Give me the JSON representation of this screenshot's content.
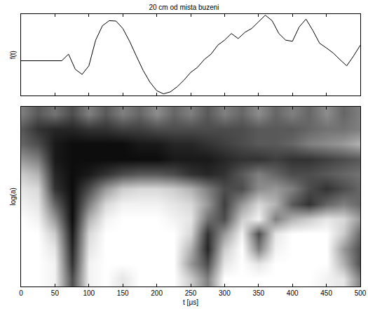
{
  "chart_data": [
    {
      "type": "line",
      "title": "20 cm od mista buzeni",
      "y_label": "f(t)",
      "x": [
        0,
        10,
        20,
        30,
        40,
        50,
        60,
        70,
        80,
        90,
        100,
        110,
        120,
        130,
        140,
        150,
        160,
        170,
        180,
        190,
        200,
        210,
        220,
        230,
        240,
        250,
        260,
        270,
        280,
        290,
        300,
        310,
        320,
        330,
        340,
        350,
        360,
        370,
        380,
        390,
        400,
        410,
        420,
        430,
        440,
        450,
        460,
        470,
        480,
        490,
        500
      ],
      "values": [
        0,
        0,
        0,
        0,
        0,
        0,
        0,
        0.17,
        -0.22,
        -0.35,
        -0.13,
        0.53,
        0.9,
        1.03,
        1.02,
        0.83,
        0.5,
        0.12,
        -0.25,
        -0.55,
        -0.77,
        -0.85,
        -0.8,
        -0.67,
        -0.5,
        -0.3,
        -0.17,
        0.03,
        0.17,
        0.4,
        0.53,
        0.7,
        0.57,
        0.73,
        0.83,
        1.0,
        1.17,
        1.03,
        0.7,
        0.53,
        0.5,
        0.87,
        1.07,
        0.78,
        0.45,
        0.33,
        0.2,
        0.03,
        -0.13,
        0.12,
        0.4
      ],
      "color": "#000000",
      "xlim": [
        0,
        500
      ],
      "xticks": [
        0,
        50,
        100,
        150,
        200,
        250,
        300,
        350,
        400,
        450,
        500
      ],
      "ylim": [
        -0.9,
        1.2
      ],
      "tick_labels": false
    },
    {
      "type": "heatmap",
      "x_label": "t [μs]",
      "y_label": "log(a)",
      "x": [
        0,
        25,
        50,
        75,
        100,
        125,
        150,
        175,
        200,
        225,
        250,
        275,
        300,
        325,
        350,
        375,
        400,
        425,
        450,
        475,
        500
      ],
      "y": [
        0,
        1,
        2,
        3,
        4,
        5,
        6,
        7,
        8,
        9,
        10,
        11
      ],
      "z": [
        [
          1,
          1,
          0.95,
          0.3,
          0.95,
          1,
          0.9,
          1,
          1,
          1,
          0.8,
          0.5,
          1,
          1,
          1,
          1,
          1,
          1,
          0.95,
          0.9,
          0.5
        ],
        [
          1,
          1,
          0.95,
          0.2,
          0.95,
          1,
          1,
          1,
          1,
          1,
          0.6,
          0.3,
          0.9,
          1,
          0.9,
          1,
          1,
          1,
          1,
          0.7,
          0.3
        ],
        [
          1,
          1,
          0.9,
          0.15,
          0.9,
          1,
          1,
          1,
          1,
          1,
          0.7,
          0.15,
          0.8,
          1,
          0.5,
          0.95,
          1,
          1,
          1,
          0.6,
          0.3
        ],
        [
          1,
          1,
          0.8,
          0.1,
          0.85,
          1,
          1,
          1,
          1,
          1,
          0.85,
          0.2,
          0.6,
          0.95,
          0.3,
          0.9,
          1,
          1,
          1,
          0.8,
          0.4
        ],
        [
          1,
          0.95,
          0.6,
          0.05,
          0.7,
          0.95,
          1,
          1,
          1,
          0.95,
          0.9,
          0.45,
          0.3,
          0.8,
          0.95,
          0.5,
          0.7,
          0.8,
          0.9,
          0.85,
          0.6
        ],
        [
          0.95,
          0.9,
          0.4,
          0.05,
          0.5,
          0.85,
          0.95,
          0.95,
          0.95,
          0.9,
          0.85,
          0.6,
          0.25,
          0.6,
          0.85,
          0.7,
          0.35,
          0.2,
          0.4,
          0.5,
          0.4
        ],
        [
          0.9,
          0.85,
          0.2,
          0.05,
          0.3,
          0.6,
          0.8,
          0.85,
          0.85,
          0.8,
          0.7,
          0.5,
          0.3,
          0.3,
          0.55,
          0.6,
          0.5,
          0.3,
          0.2,
          0.3,
          0.4
        ],
        [
          0.8,
          0.7,
          0.15,
          0.05,
          0.1,
          0.2,
          0.3,
          0.35,
          0.35,
          0.3,
          0.2,
          0.15,
          0.2,
          0.35,
          0.5,
          0.4,
          0.3,
          0.3,
          0.35,
          0.4,
          0.45
        ],
        [
          0.6,
          0.5,
          0.1,
          0.05,
          0.05,
          0.05,
          0.05,
          0.05,
          0.05,
          0.1,
          0.1,
          0.1,
          0.15,
          0.2,
          0.2,
          0.25,
          0.2,
          0.2,
          0.25,
          0.3,
          0.35
        ],
        [
          0.4,
          0.3,
          0.1,
          0.05,
          0.05,
          0.05,
          0.05,
          0.1,
          0.1,
          0.15,
          0.15,
          0.2,
          0.25,
          0.3,
          0.35,
          0.35,
          0.4,
          0.5,
          0.55,
          0.6,
          0.7
        ],
        [
          0.35,
          0.2,
          0.15,
          0.15,
          0.2,
          0.2,
          0.25,
          0.25,
          0.3,
          0.3,
          0.3,
          0.3,
          0.3,
          0.3,
          0.35,
          0.35,
          0.35,
          0.4,
          0.45,
          0.45,
          0.5
        ],
        [
          0.5,
          0.35,
          0.45,
          0.3,
          0.5,
          0.35,
          0.5,
          0.4,
          0.55,
          0.4,
          0.5,
          0.35,
          0.5,
          0.4,
          0.55,
          0.4,
          0.5,
          0.4,
          0.55,
          0.4,
          0.5
        ]
      ],
      "zlim": [
        0,
        1
      ],
      "colors": [
        "#000000",
        "#ffffff"
      ],
      "xlim": [
        0,
        500
      ],
      "xticks": [
        0,
        50,
        100,
        150,
        200,
        250,
        300,
        350,
        400,
        450,
        500
      ],
      "ylim": [
        -0.5,
        11.5
      ],
      "tick_labels": "x"
    }
  ]
}
